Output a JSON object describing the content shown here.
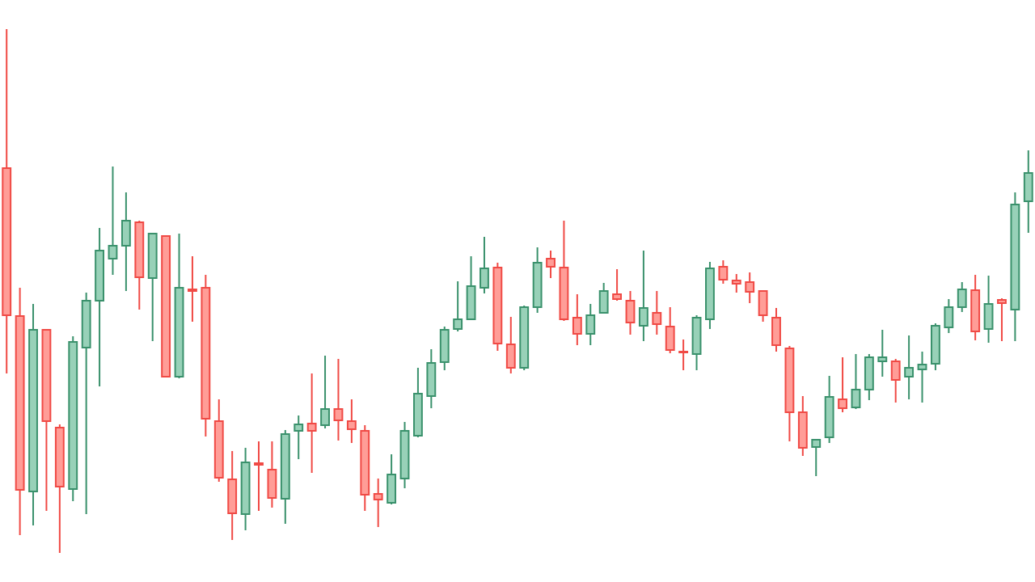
{
  "chart_data": {
    "type": "candlestick",
    "ylim": [
      0,
      72
    ],
    "up_color": "#3a916c",
    "up_fill": "#98d1b8",
    "down_color": "#f04a45",
    "down_fill": "#ff9d97",
    "open": [
      51.2,
      32.9,
      11.2,
      31.2,
      19.1,
      11.5,
      29.0,
      34.8,
      40.0,
      41.6,
      44.5,
      37.6,
      42.8,
      25.4,
      36.2,
      36.4,
      19.9,
      12.7,
      8.4,
      14.7,
      13.9,
      10.3,
      18.7,
      19.6,
      19.4,
      21.4,
      19.9,
      18.7,
      10.9,
      9.8,
      12.8,
      18.1,
      23.0,
      27.2,
      31.3,
      32.5,
      36.4,
      38.9,
      29.4,
      26.5,
      34.0,
      40.0,
      38.9,
      32.7,
      30.7,
      33.3,
      35.6,
      34.8,
      31.7,
      33.3,
      31.6,
      28.5,
      28.2,
      32.5,
      39.0,
      37.3,
      37.1,
      36.0,
      32.7,
      28.9,
      21.0,
      16.7,
      17.9,
      22.6,
      21.6,
      23.8,
      27.3,
      27.3,
      25.4,
      26.3,
      27.0,
      31.5,
      34.0,
      36.1,
      31.3,
      34.9,
      33.7,
      47.1
    ],
    "high": [
      68.4,
      36.4,
      34.4,
      31.2,
      19.5,
      30.4,
      35.8,
      43.8,
      51.4,
      48.2,
      44.7,
      43.2,
      42.8,
      43.1,
      40.3,
      38.0,
      22.6,
      16.2,
      16.6,
      17.4,
      17.4,
      18.8,
      20.6,
      25.8,
      28.0,
      27.6,
      22.6,
      19.4,
      12.8,
      15.8,
      19.8,
      26.5,
      28.8,
      31.6,
      37.2,
      40.3,
      42.7,
      39.5,
      32.8,
      34.2,
      41.4,
      41.0,
      44.7,
      35.6,
      34.4,
      37.0,
      38.7,
      36.0,
      41.0,
      36.0,
      34.0,
      30.0,
      33.0,
      39.6,
      39.8,
      38.1,
      38.3,
      36.0,
      33.9,
      29.2,
      23.0,
      17.6,
      25.5,
      27.8,
      28.2,
      28.2,
      31.2,
      27.6,
      30.5,
      28.5,
      32.0,
      35.0,
      37.1,
      38.0,
      37.9,
      35.1,
      48.2,
      53.4
    ],
    "low": [
      25.8,
      5.8,
      7.0,
      8.8,
      3.6,
      10.0,
      8.4,
      24.2,
      38.0,
      36.0,
      33.7,
      29.8,
      25.4,
      25.2,
      32.2,
      18.0,
      12.4,
      5.2,
      6.4,
      8.8,
      9.2,
      7.2,
      15.2,
      13.5,
      19.0,
      17.5,
      17.2,
      8.8,
      6.8,
      9.6,
      11.6,
      17.9,
      21.5,
      26.2,
      31.0,
      32.5,
      35.7,
      28.6,
      25.8,
      26.2,
      33.3,
      37.6,
      32.3,
      29.3,
      29.3,
      33.2,
      34.8,
      30.6,
      29.8,
      30.6,
      28.3,
      26.2,
      26.2,
      31.3,
      36.9,
      35.8,
      34.5,
      32.2,
      28.5,
      17.4,
      15.6,
      13.1,
      17.2,
      21.0,
      21.4,
      22.5,
      25.4,
      22.2,
      22.6,
      22.2,
      26.2,
      30.8,
      33.4,
      29.9,
      29.6,
      29.8,
      29.8,
      43.2
    ],
    "close": [
      33.0,
      11.4,
      31.2,
      19.9,
      11.8,
      29.7,
      34.8,
      41.0,
      41.6,
      44.7,
      37.7,
      43.1,
      25.4,
      36.4,
      36.0,
      20.2,
      12.9,
      8.5,
      14.8,
      14.5,
      10.4,
      18.3,
      19.5,
      18.7,
      21.4,
      20.0,
      18.9,
      10.8,
      10.2,
      13.3,
      18.7,
      23.3,
      27.1,
      31.2,
      32.5,
      36.6,
      38.8,
      29.5,
      26.5,
      34.0,
      39.5,
      39.0,
      32.5,
      30.7,
      33.0,
      36.0,
      35.0,
      32.1,
      33.9,
      31.9,
      28.7,
      28.4,
      32.7,
      38.8,
      37.4,
      36.9,
      35.9,
      33.0,
      29.3,
      21.0,
      16.6,
      17.6,
      22.9,
      21.5,
      23.8,
      27.8,
      27.8,
      25.0,
      26.5,
      26.9,
      31.7,
      34.0,
      36.2,
      31.0,
      34.4,
      34.5,
      46.7,
      50.6
    ]
  }
}
